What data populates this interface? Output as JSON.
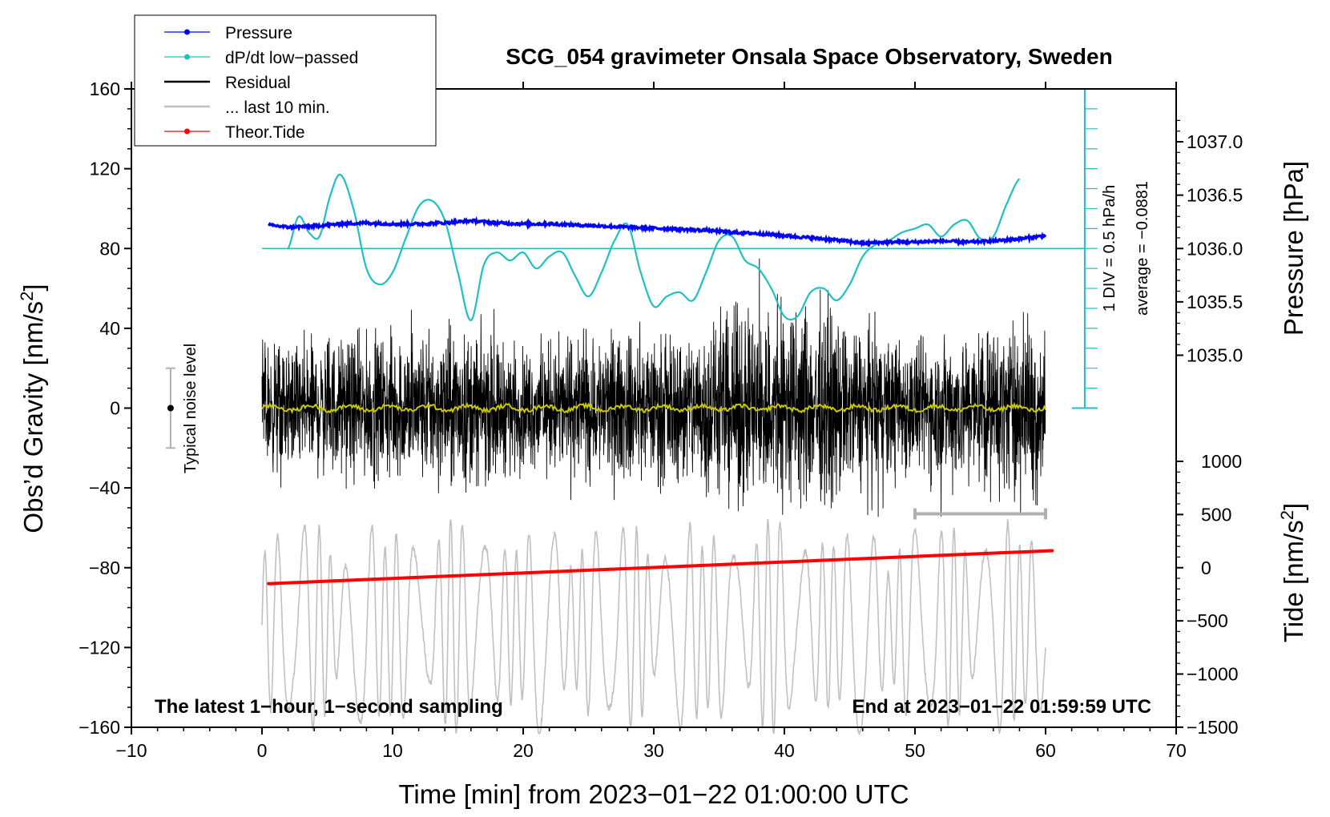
{
  "chart_data": {
    "type": "line",
    "title": "SCG_054 gravimeter Onsala Space Observatory, Sweden",
    "xlabel": "Time [min] from 2023−01−22 01:00:00 UTC",
    "ylabel_left_main": "Obs’d Gravity [nm/s",
    "ylabel_left_sup": "2",
    "ylabel_left_end": "]",
    "ylabel_right_pressure": "Pressure [hPa]",
    "ylabel_right_tide_main": "Tide [nm/s",
    "ylabel_right_tide_sup": "2",
    "ylabel_right_tide_end": "]",
    "xlim": [
      -10,
      70
    ],
    "ylim": [
      -160,
      160
    ],
    "x_ticks": [
      "−10",
      "0",
      "10",
      "20",
      "30",
      "40",
      "50",
      "60",
      "70"
    ],
    "x_tick_values": [
      -10,
      0,
      10,
      20,
      30,
      40,
      50,
      60,
      70
    ],
    "y_ticks": [
      "160",
      "120",
      "80",
      "40",
      "0",
      "−40",
      "−80",
      "−120",
      "−160"
    ],
    "y_tick_values": [
      160,
      120,
      80,
      40,
      0,
      -40,
      -80,
      -120,
      -160
    ],
    "pressure_axis": {
      "ticks": [
        "1037.0",
        "1036.5",
        "1036.0",
        "1035.5",
        "1035.0"
      ],
      "values": [
        1037.0,
        1036.5,
        1036.0,
        1035.5,
        1035.0
      ],
      "gravity_at_1036": 80,
      "gravity_per_hpa": 53.5
    },
    "tide_axis": {
      "ticks": [
        "1000",
        "500",
        "0",
        "−500",
        "−1000",
        "−1500"
      ],
      "values": [
        1000,
        500,
        0,
        -500,
        -1000,
        -1500
      ],
      "gravity_at_0": -80,
      "gravity_per_unit": 0.0533
    },
    "legend": [
      {
        "label": "Pressure",
        "color": "#0000ff",
        "style": "line-dot"
      },
      {
        "label": "dP/dt low−passed",
        "color": "#20c0c0",
        "style": "line-dot"
      },
      {
        "label": "Residual",
        "color": "#000000",
        "style": "line"
      },
      {
        "label": "... last 10 min.",
        "color": "#c0c0c0",
        "style": "line"
      },
      {
        "label": "Theor.Tide",
        "color": "#ff0000",
        "style": "line-dot"
      }
    ],
    "noise_label": "Typical noise level",
    "noise_bar": {
      "x": -7,
      "center": 0,
      "half_range": 20
    },
    "dpdt_scale_label": "1 DIV = 0.5 hPa/h",
    "dpdt_average_label": "average = −0.0881",
    "dpdt_axis": {
      "x": 63,
      "baseline_gravity": 80,
      "top_gravity": 160,
      "bottom_gravity": 0
    },
    "bottom_left_note": "The latest 1−hour, 1−second sampling",
    "bottom_right_note": "End at 2023−01−22 01:59:59 UTC",
    "last10_bar": {
      "x_start": 50,
      "x_end": 60,
      "gravity": -53
    },
    "series": [
      {
        "name": "Pressure",
        "color": "#0000ff",
        "units": "hPa",
        "x": [
          0.5,
          2,
          4,
          6,
          8,
          10,
          12,
          14,
          16,
          18,
          20,
          22,
          24,
          26,
          28,
          30,
          32,
          34,
          36,
          38,
          40,
          42,
          44,
          46,
          48,
          50,
          52,
          54,
          56,
          58,
          60
        ],
        "values": [
          1036.22,
          1036.2,
          1036.21,
          1036.23,
          1036.24,
          1036.23,
          1036.23,
          1036.24,
          1036.26,
          1036.24,
          1036.23,
          1036.23,
          1036.22,
          1036.21,
          1036.2,
          1036.19,
          1036.18,
          1036.17,
          1036.15,
          1036.14,
          1036.12,
          1036.1,
          1036.08,
          1036.05,
          1036.06,
          1036.06,
          1036.07,
          1036.06,
          1036.07,
          1036.09,
          1036.12
        ]
      },
      {
        "name": "dP/dt low−passed",
        "color": "#20c0c0",
        "units": "gravity-axis",
        "x": [
          2,
          2.8,
          3.6,
          4.4,
          5.2,
          6,
          7,
          8,
          9,
          10,
          11,
          12,
          13,
          14,
          15,
          16,
          17,
          18,
          19,
          20,
          21,
          22,
          23,
          24,
          25,
          26,
          27,
          28,
          29,
          30,
          31,
          32,
          33,
          34,
          35,
          36,
          37,
          38,
          39,
          40,
          41,
          42,
          43,
          44,
          45,
          46,
          47,
          48,
          49,
          50,
          51,
          52,
          53,
          54,
          55,
          56,
          57,
          58
        ],
        "values": [
          80,
          96,
          88,
          86,
          106,
          117,
          100,
          70,
          62,
          68,
          85,
          101,
          104,
          94,
          68,
          44,
          72,
          78,
          74,
          78,
          70,
          76,
          78,
          66,
          56,
          68,
          84,
          92,
          68,
          51,
          56,
          58,
          54,
          68,
          84,
          86,
          74,
          70,
          60,
          46,
          46,
          58,
          60,
          54,
          62,
          76,
          82,
          84,
          88,
          90,
          92,
          86,
          92,
          94,
          85,
          86,
          102,
          115
        ]
      },
      {
        "name": "Residual",
        "color": "#000000",
        "units": "nm/s2",
        "x_range": [
          0,
          60
        ],
        "note": "1-second sampled noise; typical envelope ±40, peaks to ±70",
        "envelope": {
          "x": [
            0,
            5,
            10,
            15,
            20,
            25,
            30,
            35,
            40,
            45,
            50,
            55,
            60
          ],
          "amplitude": [
            28,
            30,
            32,
            36,
            26,
            34,
            30,
            40,
            50,
            38,
            30,
            36,
            40
          ]
        }
      },
      {
        "name": "... last 10 min.",
        "color": "#c0c0c0",
        "units": "tide-axis",
        "x_range": [
          0,
          60
        ],
        "note": "oscillation of last 10 min residual, amplitude ~500–1500"
      },
      {
        "name": "Residual low-pass",
        "color": "#c8c800",
        "units": "nm/s2",
        "x_range": [
          0,
          60
        ],
        "values_approx": 0
      },
      {
        "name": "Theor.Tide",
        "color": "#ff0000",
        "units": "nm/s2 tide",
        "x": [
          0.5,
          60.5
        ],
        "values": [
          -150,
          160
        ]
      }
    ]
  }
}
